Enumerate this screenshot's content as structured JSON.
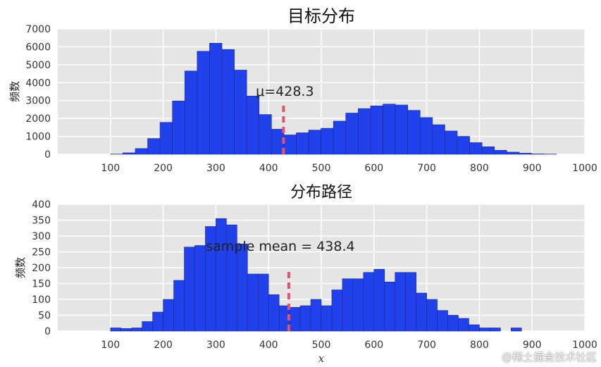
{
  "chart_data": [
    {
      "type": "bar",
      "title": "目标分布",
      "ylabel": "频数",
      "xlabel": "",
      "xlim": [
        0,
        1000
      ],
      "ylim": [
        0,
        7000
      ],
      "xticks": [
        100,
        200,
        300,
        400,
        500,
        600,
        700,
        800,
        900,
        1000
      ],
      "yticks": [
        0,
        1000,
        2000,
        3000,
        4000,
        5000,
        6000,
        7000
      ],
      "bin_width": 23.5,
      "bin_start": 100,
      "values": [
        10,
        80,
        320,
        880,
        1780,
        2980,
        4650,
        5750,
        6200,
        5850,
        4700,
        3250,
        2220,
        1400,
        1080,
        1200,
        1350,
        1450,
        1850,
        2300,
        2550,
        2700,
        2800,
        2750,
        2450,
        2050,
        1650,
        1300,
        1000,
        650,
        420,
        220,
        120,
        60,
        20,
        10
      ],
      "mean_line": {
        "x": 428.3,
        "label": "μ=428.3",
        "color": "#e2546a"
      },
      "bar_color": "#2142eb",
      "background": "#e5e5e5",
      "grid": true
    },
    {
      "type": "bar",
      "title": "分布路径",
      "ylabel": "频数",
      "xlabel": "x",
      "xlim": [
        0,
        1000
      ],
      "ylim": [
        0,
        400
      ],
      "xticks": [
        100,
        200,
        300,
        400,
        500,
        600,
        700,
        800,
        900,
        1000
      ],
      "yticks": [
        0,
        50,
        100,
        150,
        200,
        250,
        300,
        350,
        400
      ],
      "bin_width": 20,
      "bin_start": 100,
      "values": [
        10,
        8,
        10,
        30,
        60,
        100,
        160,
        265,
        270,
        330,
        355,
        335,
        275,
        180,
        180,
        115,
        80,
        75,
        80,
        100,
        80,
        130,
        165,
        165,
        185,
        195,
        155,
        185,
        185,
        120,
        100,
        65,
        50,
        40,
        20,
        10,
        10,
        0,
        10
      ],
      "mean_line": {
        "x": 438.4,
        "label": "sample mean = 438.4",
        "color": "#e2546a"
      },
      "bar_color": "#2142eb",
      "background": "#e5e5e5",
      "grid": true
    }
  ],
  "watermark": "@稀土掘金技术社区"
}
